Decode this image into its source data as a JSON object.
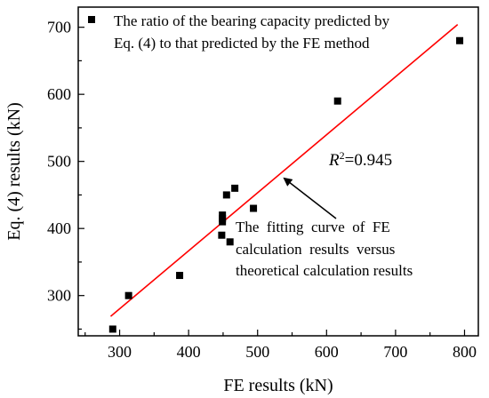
{
  "chart_data": {
    "type": "scatter",
    "xlabel": "FE results (kN)",
    "ylabel": "Eq. (4) results (kN)",
    "xlim": [
      240,
      820
    ],
    "ylim": [
      240,
      730
    ],
    "xticks": [
      300,
      400,
      500,
      600,
      700,
      800
    ],
    "yticks": [
      300,
      400,
      500,
      600,
      700
    ],
    "grid": false,
    "legend": {
      "placement": "top-left",
      "lines": [
        "The ratio of the bearing capacity predicted by",
        "Eq. (4) to that predicted by the FE method"
      ]
    },
    "series": [
      {
        "name": "The ratio of the bearing capacity predicted by Eq. (4) to that predicted by the FE method",
        "marker": "square",
        "color": "#000000",
        "points": [
          {
            "x": 290,
            "y": 250
          },
          {
            "x": 313,
            "y": 300
          },
          {
            "x": 387,
            "y": 330
          },
          {
            "x": 448,
            "y": 390
          },
          {
            "x": 449,
            "y": 410
          },
          {
            "x": 449,
            "y": 415
          },
          {
            "x": 449,
            "y": 420
          },
          {
            "x": 455,
            "y": 450
          },
          {
            "x": 460,
            "y": 380
          },
          {
            "x": 467,
            "y": 460
          },
          {
            "x": 494,
            "y": 430
          },
          {
            "x": 616,
            "y": 590
          },
          {
            "x": 793,
            "y": 680
          }
        ]
      }
    ],
    "fit_line": {
      "color": "#ff0000",
      "x": [
        287,
        790
      ],
      "y": [
        269,
        704
      ]
    },
    "annotations": {
      "r2_symbol": "R",
      "r2_sup": "2",
      "r2_value": "=0.945",
      "fit_note_lines": [
        "The  fitting  curve  of  FE",
        "calculation  results  versus",
        "theoretical calculation results"
      ]
    }
  }
}
